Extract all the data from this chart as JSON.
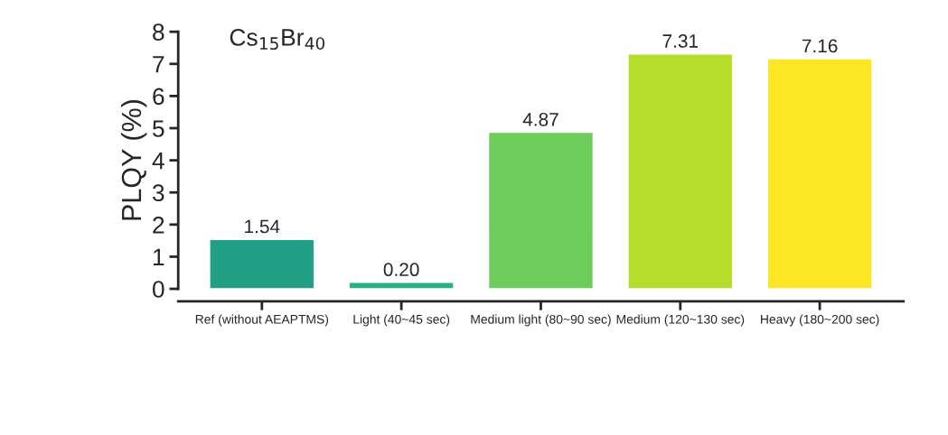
{
  "chart_data": {
    "type": "bar",
    "title": "Cs$_{15}$Br$_{40}$",
    "ylabel": "PLQY (%)",
    "categories": [
      "Ref (without AEAPTMS)",
      "Light (40~45 sec)",
      "Medium light (80~90 sec)",
      "Medium (120~130 sec)",
      "Heavy (180~200 sec)"
    ],
    "values": [
      1.54,
      0.2,
      4.87,
      7.31,
      7.16
    ],
    "colors": [
      "#21a086",
      "#2bb07f",
      "#6ccd5a",
      "#b5de2b",
      "#fde725"
    ],
    "value_labels": [
      "1.54",
      "0.20",
      "4.87",
      "7.31",
      "7.16"
    ],
    "ylim": [
      0,
      8
    ],
    "yticks": [
      0,
      1,
      2,
      3,
      4,
      5,
      6,
      7,
      8
    ],
    "grid": false,
    "legend": false
  }
}
